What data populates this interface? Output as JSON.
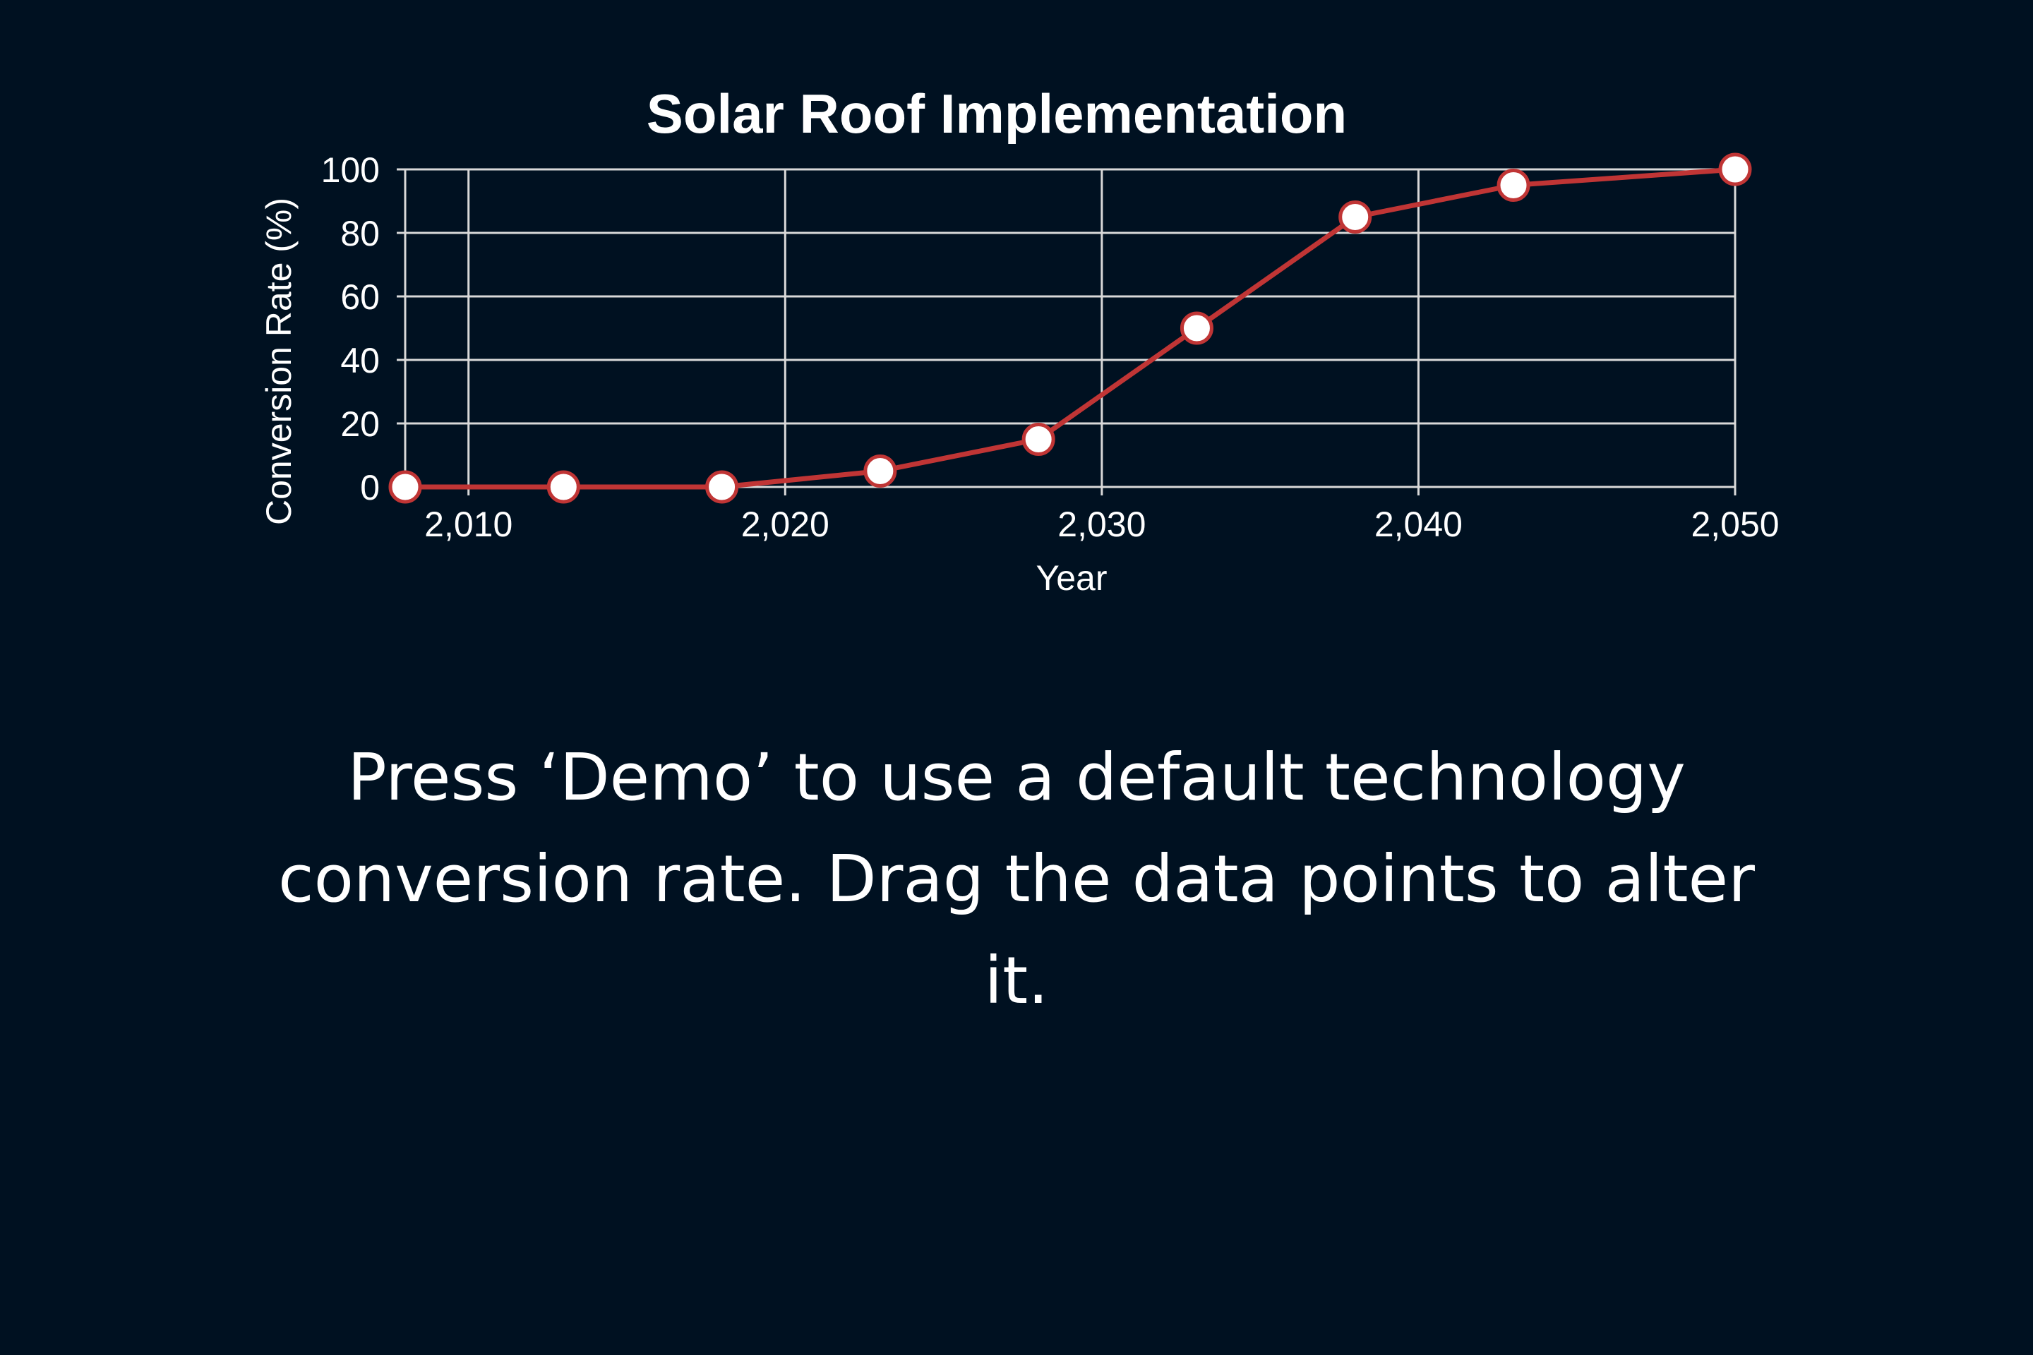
{
  "colors": {
    "background": "#001121",
    "series_line": "#c03535",
    "point_fill": "#ffffff",
    "point_stroke": "#c03535",
    "grid": "#d9d9d9",
    "text": "#ffffff"
  },
  "chart_data": {
    "type": "line",
    "title": "Solar Roof Implementation",
    "xlabel": "Year",
    "ylabel": "Conversion Rate (%)",
    "xlim": [
      2008,
      2050
    ],
    "ylim": [
      0,
      100
    ],
    "grid": true,
    "x_ticks": [
      2010,
      2020,
      2030,
      2040,
      2050
    ],
    "x_tick_labels": [
      "2,010",
      "2,020",
      "2,030",
      "2,040",
      "2,050"
    ],
    "y_ticks": [
      0,
      20,
      40,
      60,
      80,
      100
    ],
    "y_tick_labels": [
      "0",
      "20",
      "40",
      "60",
      "80",
      "100"
    ],
    "series": [
      {
        "x": [
          2008,
          2013,
          2018,
          2023,
          2028,
          2033,
          2038,
          2043,
          2050
        ],
        "y": [
          0,
          0,
          0,
          5,
          15,
          50,
          85,
          95,
          100
        ]
      }
    ]
  },
  "instructions": {
    "text": "Press ‘Demo’ to use a default technology conversion rate. Drag the data points to alter it."
  }
}
